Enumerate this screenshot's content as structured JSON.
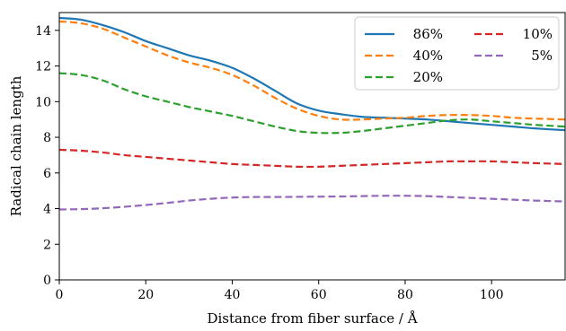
{
  "chart_data": {
    "type": "line",
    "title": "",
    "xlabel": "Distance from fiber surface / Å",
    "ylabel": "Radical chain length",
    "xlim": [
      0,
      117
    ],
    "ylim": [
      0,
      15
    ],
    "xticks": [
      0,
      20,
      40,
      60,
      80,
      100
    ],
    "yticks": [
      0,
      2,
      4,
      6,
      8,
      10,
      12,
      14
    ],
    "grid": false,
    "legend": {
      "placement": "top-right",
      "columns": 2
    },
    "x": [
      0,
      5,
      10,
      15,
      20,
      25,
      30,
      35,
      40,
      45,
      50,
      55,
      60,
      65,
      70,
      75,
      80,
      85,
      90,
      95,
      100,
      105,
      110,
      117
    ],
    "series": [
      {
        "name": "86%",
        "color": "#1f77b4",
        "dash": "solid",
        "values": [
          14.7,
          14.6,
          14.3,
          13.9,
          13.4,
          13.0,
          12.6,
          12.3,
          11.9,
          11.3,
          10.6,
          9.9,
          9.5,
          9.3,
          9.15,
          9.1,
          9.05,
          9.0,
          8.9,
          8.8,
          8.7,
          8.6,
          8.5,
          8.4
        ]
      },
      {
        "name": "40%",
        "color": "#ff7f0e",
        "dash": "dashed",
        "values": [
          14.5,
          14.4,
          14.1,
          13.6,
          13.1,
          12.6,
          12.2,
          11.9,
          11.5,
          10.9,
          10.2,
          9.6,
          9.2,
          9.0,
          9.0,
          9.05,
          9.1,
          9.2,
          9.25,
          9.25,
          9.2,
          9.1,
          9.05,
          9.0
        ]
      },
      {
        "name": "20%",
        "color": "#2ca02c",
        "dash": "dashed",
        "values": [
          11.6,
          11.5,
          11.2,
          10.7,
          10.3,
          10.0,
          9.7,
          9.45,
          9.2,
          8.9,
          8.6,
          8.35,
          8.25,
          8.25,
          8.35,
          8.5,
          8.65,
          8.8,
          8.95,
          9.0,
          8.9,
          8.8,
          8.7,
          8.6
        ]
      },
      {
        "name": "10%",
        "color": "#d62728",
        "dash": "dashed",
        "values": [
          7.3,
          7.25,
          7.15,
          7.0,
          6.9,
          6.8,
          6.7,
          6.6,
          6.5,
          6.45,
          6.4,
          6.35,
          6.35,
          6.4,
          6.45,
          6.5,
          6.55,
          6.6,
          6.65,
          6.65,
          6.65,
          6.6,
          6.55,
          6.5
        ]
      },
      {
        "name": "5%",
        "color": "#9467bd",
        "dash": "dashed",
        "values": [
          3.95,
          3.97,
          4.02,
          4.1,
          4.2,
          4.32,
          4.45,
          4.55,
          4.62,
          4.65,
          4.65,
          4.66,
          4.67,
          4.68,
          4.7,
          4.72,
          4.72,
          4.7,
          4.65,
          4.6,
          4.55,
          4.5,
          4.45,
          4.4
        ]
      }
    ]
  }
}
